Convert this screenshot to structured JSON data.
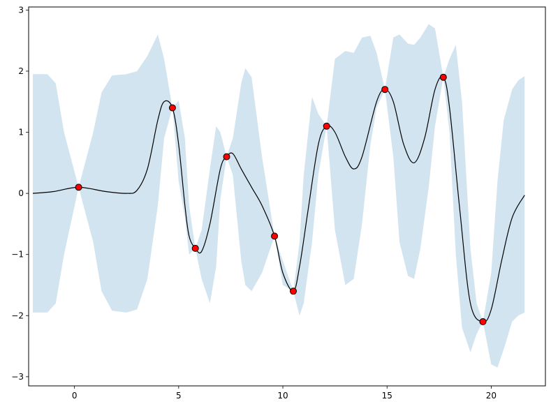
{
  "chart_data": {
    "type": "line",
    "title": "",
    "xlabel": "",
    "ylabel": "",
    "xlim": [
      -2.2,
      22.6
    ],
    "ylim": [
      -3.15,
      3.05
    ],
    "xticks": [
      0,
      5,
      10,
      15,
      20
    ],
    "yticks": [
      -3,
      -2,
      -1,
      0,
      1,
      2,
      3
    ],
    "xtick_labels": [
      "0",
      "5",
      "10",
      "15",
      "20"
    ],
    "ytick_labels": [
      "−3",
      "−2",
      "−1",
      "0",
      "1",
      "2",
      "3"
    ],
    "grid": false,
    "legend": "none",
    "colors": {
      "mean_line": "#000000",
      "band_fill": "#1f77b4",
      "band_opacity": 0.2,
      "point_fill": "#ff0000",
      "point_edge": "#000000"
    },
    "observations": {
      "x": [
        0.2,
        4.7,
        5.8,
        7.3,
        9.6,
        10.5,
        12.1,
        14.9,
        17.7,
        19.6
      ],
      "y": [
        0.1,
        1.4,
        -0.9,
        0.6,
        -0.7,
        -1.6,
        1.1,
        1.7,
        1.9,
        -2.1
      ]
    },
    "mean_curve": {
      "x": [
        -2.0,
        -1.0,
        0.2,
        1.5,
        2.5,
        3.0,
        3.5,
        4.0,
        4.3,
        4.7,
        5.0,
        5.3,
        5.5,
        5.8,
        6.1,
        6.5,
        7.0,
        7.3,
        7.6,
        8.0,
        8.5,
        9.0,
        9.6,
        10.0,
        10.5,
        10.8,
        11.2,
        11.7,
        12.1,
        12.5,
        13.0,
        13.4,
        13.8,
        14.5,
        14.9,
        15.3,
        15.8,
        16.3,
        16.8,
        17.3,
        17.7,
        18.0,
        18.5,
        19.0,
        19.6,
        20.0,
        20.5,
        21.0,
        21.6
      ],
      "y": [
        0.0,
        0.03,
        0.1,
        0.03,
        0.0,
        0.05,
        0.4,
        1.2,
        1.5,
        1.4,
        0.8,
        -0.2,
        -0.7,
        -0.9,
        -0.95,
        -0.5,
        0.4,
        0.6,
        0.65,
        0.4,
        0.1,
        -0.2,
        -0.7,
        -1.3,
        -1.6,
        -1.2,
        -0.3,
        0.8,
        1.1,
        1.0,
        0.6,
        0.4,
        0.6,
        1.5,
        1.7,
        1.5,
        0.8,
        0.5,
        0.9,
        1.7,
        1.9,
        1.4,
        -0.3,
        -1.8,
        -2.1,
        -1.9,
        -1.1,
        -0.4,
        -0.03
      ]
    },
    "confidence_band": {
      "x": [
        -2.0,
        -1.3,
        -0.9,
        -0.5,
        0.2,
        0.9,
        1.3,
        1.8,
        2.5,
        3.0,
        3.5,
        4.0,
        4.3,
        4.7,
        5.0,
        5.3,
        5.5,
        5.8,
        6.1,
        6.5,
        6.8,
        7.0,
        7.3,
        7.6,
        8.0,
        8.2,
        8.5,
        9.0,
        9.6,
        10.0,
        10.5,
        10.8,
        11.0,
        11.4,
        11.7,
        12.1,
        12.5,
        13.0,
        13.4,
        13.8,
        14.2,
        14.5,
        14.9,
        15.3,
        15.6,
        16.0,
        16.3,
        16.6,
        17.0,
        17.3,
        17.7,
        18.0,
        18.3,
        18.6,
        19.0,
        19.3,
        19.6,
        20.0,
        20.3,
        20.6,
        21.0,
        21.3,
        21.6
      ],
      "upper": [
        1.95,
        1.95,
        1.8,
        1.0,
        0.1,
        1.0,
        1.65,
        1.93,
        1.95,
        2.0,
        2.25,
        2.6,
        2.2,
        1.4,
        1.52,
        0.9,
        -0.2,
        -0.9,
        -0.6,
        0.4,
        1.1,
        1.0,
        0.6,
        0.9,
        1.8,
        2.05,
        1.9,
        0.6,
        -0.7,
        -1.1,
        -1.6,
        -0.8,
        0.3,
        1.58,
        1.3,
        1.1,
        2.2,
        2.33,
        2.3,
        2.55,
        2.58,
        2.3,
        1.7,
        2.55,
        2.6,
        2.45,
        2.43,
        2.55,
        2.77,
        2.7,
        1.9,
        2.2,
        2.43,
        1.5,
        -0.9,
        -1.8,
        -2.1,
        -1.3,
        0.2,
        1.2,
        1.7,
        1.85,
        1.92
      ],
      "lower": [
        -1.95,
        -1.95,
        -1.8,
        -1.0,
        0.1,
        -0.8,
        -1.6,
        -1.92,
        -1.95,
        -1.9,
        -1.4,
        -0.2,
        0.9,
        1.4,
        0.2,
        -0.4,
        -1.0,
        -0.9,
        -1.4,
        -1.8,
        -1.2,
        -0.1,
        0.6,
        0.3,
        -1.1,
        -1.5,
        -1.6,
        -1.3,
        -0.7,
        -1.5,
        -1.6,
        -2.0,
        -1.8,
        -0.8,
        0.3,
        1.1,
        -0.6,
        -1.5,
        -1.4,
        -0.5,
        0.8,
        1.4,
        1.7,
        0.6,
        -0.8,
        -1.35,
        -1.4,
        -0.9,
        0.1,
        1.1,
        1.9,
        1.0,
        -1.0,
        -2.2,
        -2.6,
        -2.3,
        -2.1,
        -2.8,
        -2.85,
        -2.55,
        -2.1,
        -2.0,
        -1.95
      ]
    }
  }
}
